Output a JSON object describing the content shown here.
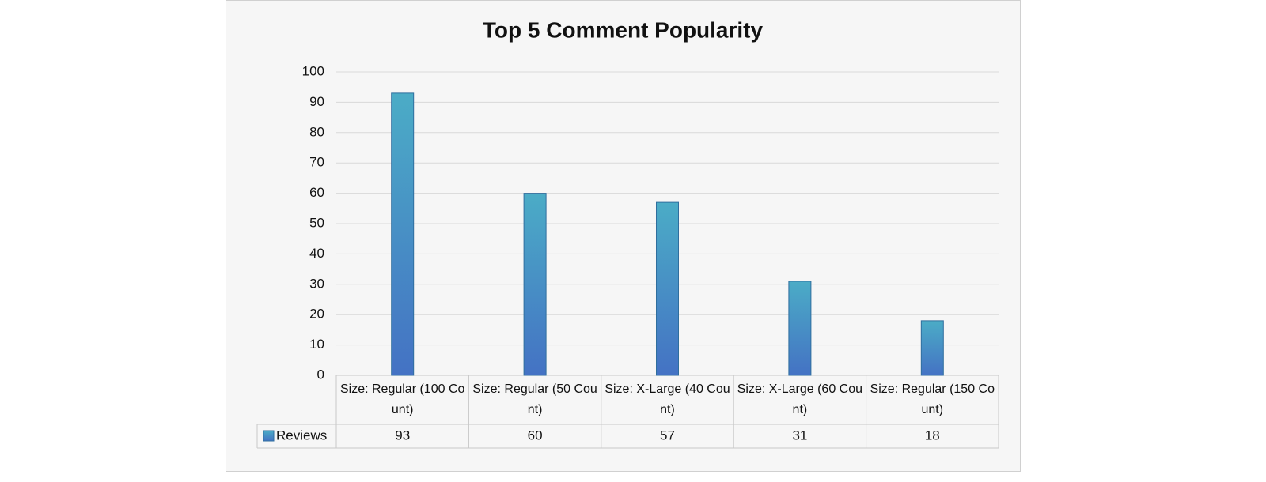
{
  "chart_data": {
    "type": "bar",
    "title": "Top 5 Comment Popularity",
    "categories": [
      "Size: Regular (100 Count)",
      "Size: Regular (50 Count)",
      "Size: X-Large (40 Count)",
      "Size: X-Large (60 Count)",
      "Size: Regular (150 Count)"
    ],
    "series": [
      {
        "name": "Reviews",
        "color": "#4bacc6",
        "values": [
          93,
          60,
          57,
          31,
          18
        ]
      }
    ],
    "ylim": [
      0,
      100
    ],
    "yticks": [
      0,
      10,
      20,
      30,
      40,
      50,
      60,
      70,
      80,
      90,
      100
    ],
    "grid": true
  }
}
